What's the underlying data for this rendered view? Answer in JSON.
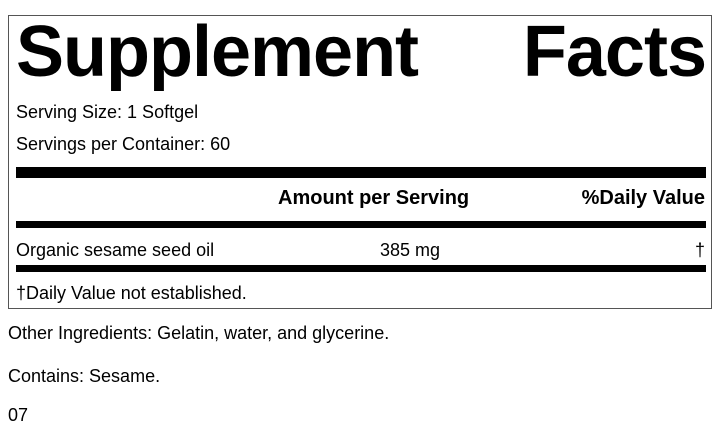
{
  "label": {
    "title": "Supplement Facts",
    "serving_size": "Serving Size: 1 Softgel",
    "servings_per_container": "Servings per Container: 60",
    "header": {
      "amount": "Amount per Serving",
      "daily_value": "%Daily Value"
    },
    "rows": [
      {
        "name": "Organic sesame seed oil",
        "amount": "385 mg",
        "daily_value": "†"
      }
    ],
    "footnote": "†Daily Value not established."
  },
  "other_ingredients": "Other Ingredients: Gelatin, water, and glycerine.",
  "contains": "Contains: Sesame.",
  "code": "07"
}
